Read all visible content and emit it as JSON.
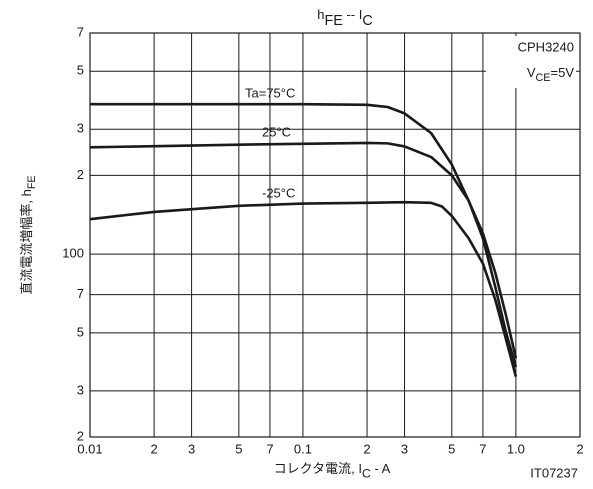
{
  "chart_data": {
    "type": "line",
    "title": [
      "h",
      "FE",
      " -- I",
      "C"
    ],
    "ylabel": [
      "直流電流増幅率, h",
      "FE"
    ],
    "xlabel": [
      "コレクタ電流, I",
      "C",
      " - A"
    ],
    "annotations": {
      "part": "CPH3240",
      "condition": [
        "V",
        "CE",
        "=5V"
      ],
      "code": "IT07237"
    },
    "log_x": true,
    "log_y": true,
    "grid": true,
    "xlim": [
      0.01,
      2
    ],
    "ylim": [
      20,
      700
    ],
    "xticks": [
      0.01,
      {
        "value": 0.02,
        "label": "2"
      },
      {
        "value": 0.03,
        "label": "3"
      },
      {
        "value": 0.05,
        "label": "5"
      },
      {
        "value": 0.07,
        "label": "7"
      },
      0.1,
      {
        "value": 0.2,
        "label": "2"
      },
      {
        "value": 0.3,
        "label": "3"
      },
      {
        "value": 0.5,
        "label": "5"
      },
      {
        "value": 0.7,
        "label": "7"
      },
      {
        "value": 1,
        "label": "1.0"
      },
      2
    ],
    "yticks": [
      {
        "value": 20,
        "label": "2"
      },
      {
        "value": 30,
        "label": "3"
      },
      {
        "value": 50,
        "label": "5"
      },
      {
        "value": 70,
        "label": "7"
      },
      100,
      {
        "value": 200,
        "label": "2"
      },
      {
        "value": 300,
        "label": "3"
      },
      {
        "value": 500,
        "label": "5"
      },
      {
        "value": 700,
        "label": "7"
      }
    ],
    "series": [
      {
        "name": "Ta=75°C",
        "color": "#1a1a1a",
        "x": [
          0.01,
          0.05,
          0.1,
          0.2,
          0.25,
          0.3,
          0.4,
          0.5,
          0.6,
          0.7,
          0.8,
          0.9,
          1.0
        ],
        "values": [
          374,
          374,
          374,
          372,
          365,
          345,
          290,
          220,
          160,
          115,
          75,
          50,
          37
        ]
      },
      {
        "name": "25°C",
        "color": "#1a1a1a",
        "x": [
          0.01,
          0.05,
          0.1,
          0.2,
          0.25,
          0.3,
          0.4,
          0.5,
          0.6,
          0.7,
          0.8,
          0.9,
          1.0
        ],
        "values": [
          256,
          262,
          264,
          266,
          265,
          258,
          235,
          200,
          160,
          120,
          85,
          58,
          40
        ]
      },
      {
        "name": "-25°C",
        "color": "#1a1a1a",
        "x": [
          0.01,
          0.02,
          0.05,
          0.1,
          0.2,
          0.3,
          0.4,
          0.45,
          0.5,
          0.6,
          0.7,
          0.8,
          0.9,
          1.0
        ],
        "values": [
          136,
          145,
          153,
          156,
          157,
          158,
          157,
          152,
          140,
          115,
          92,
          67,
          47,
          34
        ]
      }
    ]
  }
}
